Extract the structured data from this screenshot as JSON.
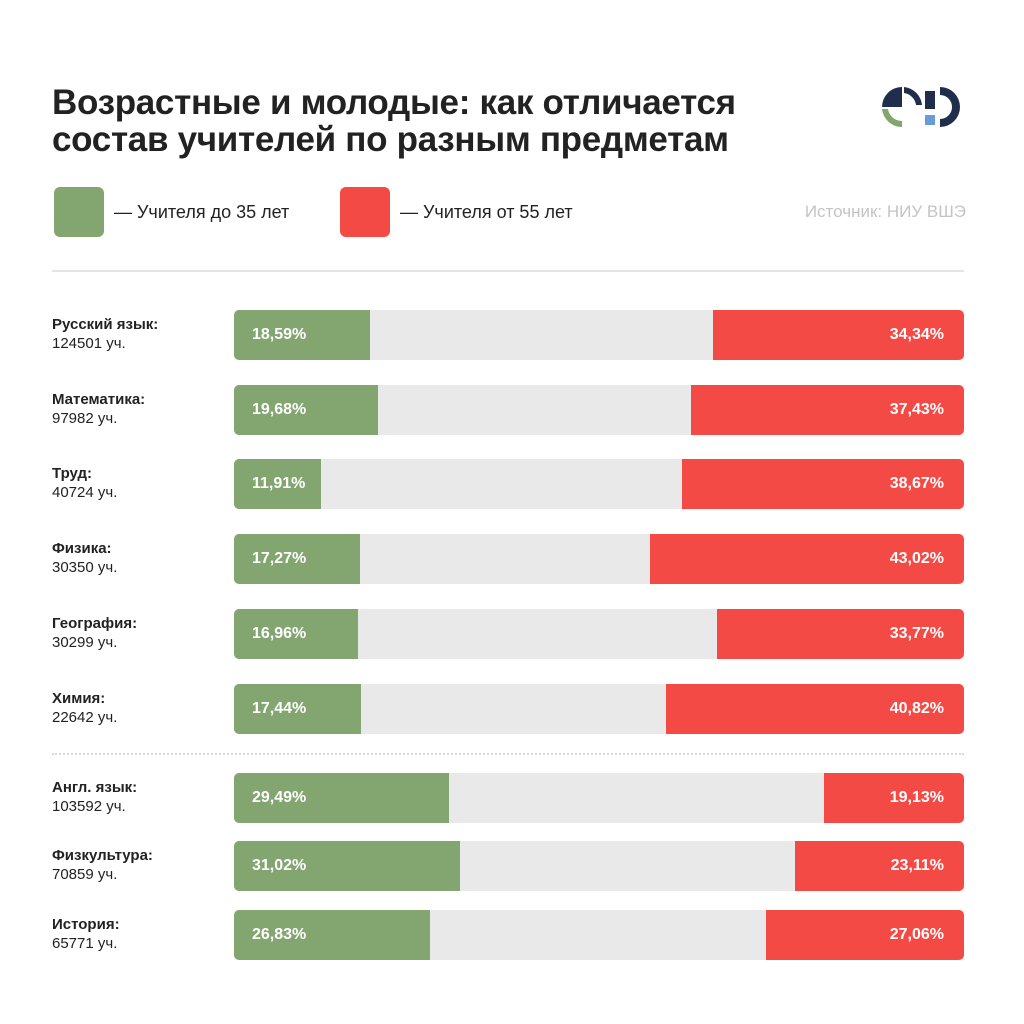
{
  "title": {
    "line1": "Возрастные и молодые: как отличается",
    "line2": "состав учителей по разным предметам"
  },
  "legend": {
    "young_label": "— Учителя до 35 лет",
    "old_label": "— Учителя от 55 лет"
  },
  "source": "Источник: НИУ ВШЭ",
  "colors": {
    "young": "#83a671",
    "old": "#f44a45",
    "track": "#e9e9e9",
    "logo_navy": "#1f2e4d",
    "logo_green": "#83a671",
    "logo_blue": "#6a9bd6"
  },
  "chart_data": {
    "type": "bar",
    "orientation": "horizontal",
    "stacked": true,
    "categories": [
      "Русский язык",
      "Математика",
      "Труд",
      "Физика",
      "География",
      "Химия",
      "Англ. язык",
      "Физкультура",
      "История"
    ],
    "counts": [
      "124501 уч.",
      "97982 уч.",
      "40724 уч.",
      "30350 уч.",
      "30299 уч.",
      "22642 уч.",
      "103592 уч.",
      "70859 уч.",
      "65771 уч."
    ],
    "series": [
      {
        "name": "Учителя до 35 лет",
        "values": [
          18.59,
          19.68,
          11.91,
          17.27,
          16.96,
          17.44,
          29.49,
          31.02,
          26.83
        ]
      },
      {
        "name": "Учителя от 55 лет",
        "values": [
          34.34,
          37.43,
          38.67,
          43.02,
          33.77,
          40.82,
          19.13,
          23.11,
          27.06
        ]
      }
    ],
    "value_labels": {
      "young": [
        "18,59%",
        "19,68%",
        "11,91%",
        "17,27%",
        "16,96%",
        "17,44%",
        "29,49%",
        "31,02%",
        "26,83%"
      ],
      "old": [
        "34,34%",
        "37,43%",
        "38,67%",
        "43,02%",
        "33,77%",
        "40,82%",
        "19,13%",
        "23,11%",
        "27,06%"
      ]
    },
    "xlim": [
      0,
      100
    ],
    "group_separator_after_index": 5
  }
}
